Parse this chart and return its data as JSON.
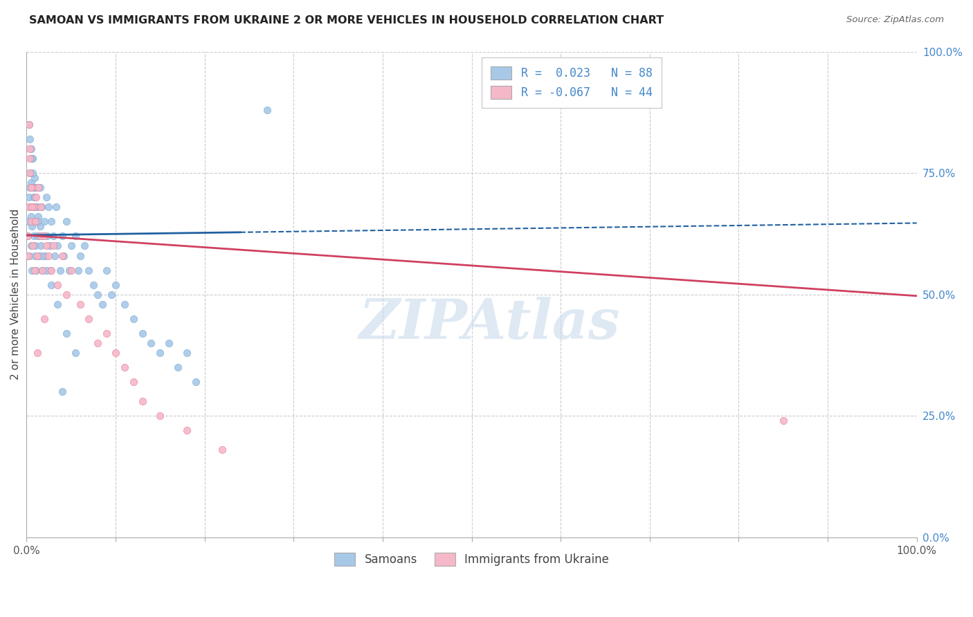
{
  "title": "SAMOAN VS IMMIGRANTS FROM UKRAINE 2 OR MORE VEHICLES IN HOUSEHOLD CORRELATION CHART",
  "source": "Source: ZipAtlas.com",
  "ylabel": "2 or more Vehicles in Household",
  "samoan_color": "#a8c8e8",
  "samoan_edge_color": "#7bafd4",
  "ukraine_color": "#f5b8c8",
  "ukraine_edge_color": "#e8809a",
  "samoan_line_color": "#2060a0",
  "ukraine_line_color": "#d04060",
  "samoan_R": 0.023,
  "samoan_N": 88,
  "ukraine_R": -0.067,
  "ukraine_N": 44,
  "legend_label_1": "Samoans",
  "legend_label_2": "Immigrants from Ukraine",
  "watermark": "ZIPAtlas",
  "right_tick_color": "#4488cc",
  "samoan_points_x": [
    0.001,
    0.002,
    0.003,
    0.003,
    0.004,
    0.004,
    0.004,
    0.005,
    0.005,
    0.005,
    0.006,
    0.006,
    0.007,
    0.007,
    0.008,
    0.008,
    0.009,
    0.009,
    0.01,
    0.01,
    0.011,
    0.011,
    0.012,
    0.012,
    0.013,
    0.014,
    0.015,
    0.015,
    0.016,
    0.017,
    0.018,
    0.019,
    0.02,
    0.021,
    0.022,
    0.023,
    0.025,
    0.026,
    0.027,
    0.028,
    0.03,
    0.032,
    0.033,
    0.035,
    0.038,
    0.04,
    0.042,
    0.045,
    0.048,
    0.05,
    0.055,
    0.058,
    0.06,
    0.065,
    0.07,
    0.075,
    0.08,
    0.085,
    0.09,
    0.095,
    0.1,
    0.11,
    0.12,
    0.13,
    0.14,
    0.15,
    0.16,
    0.17,
    0.18,
    0.19,
    0.003,
    0.004,
    0.005,
    0.006,
    0.007,
    0.008,
    0.009,
    0.01,
    0.012,
    0.015,
    0.018,
    0.022,
    0.028,
    0.035,
    0.045,
    0.055,
    0.27,
    0.04
  ],
  "samoan_points_y": [
    0.62,
    0.65,
    0.7,
    0.58,
    0.72,
    0.68,
    0.75,
    0.6,
    0.66,
    0.73,
    0.55,
    0.64,
    0.68,
    0.78,
    0.62,
    0.7,
    0.58,
    0.74,
    0.6,
    0.65,
    0.72,
    0.55,
    0.68,
    0.62,
    0.66,
    0.58,
    0.72,
    0.64,
    0.6,
    0.68,
    0.55,
    0.62,
    0.65,
    0.58,
    0.7,
    0.62,
    0.68,
    0.6,
    0.55,
    0.65,
    0.62,
    0.58,
    0.68,
    0.6,
    0.55,
    0.62,
    0.58,
    0.65,
    0.55,
    0.6,
    0.62,
    0.55,
    0.58,
    0.6,
    0.55,
    0.52,
    0.5,
    0.48,
    0.55,
    0.5,
    0.52,
    0.48,
    0.45,
    0.42,
    0.4,
    0.38,
    0.4,
    0.35,
    0.38,
    0.32,
    0.85,
    0.82,
    0.8,
    0.78,
    0.75,
    0.72,
    0.7,
    0.68,
    0.65,
    0.62,
    0.58,
    0.55,
    0.52,
    0.48,
    0.42,
    0.38,
    0.88,
    0.3
  ],
  "ukraine_points_x": [
    0.001,
    0.002,
    0.003,
    0.004,
    0.004,
    0.005,
    0.006,
    0.007,
    0.008,
    0.009,
    0.01,
    0.011,
    0.012,
    0.013,
    0.015,
    0.016,
    0.018,
    0.02,
    0.022,
    0.025,
    0.028,
    0.03,
    0.035,
    0.04,
    0.045,
    0.05,
    0.06,
    0.07,
    0.08,
    0.09,
    0.1,
    0.11,
    0.12,
    0.13,
    0.15,
    0.18,
    0.22,
    0.85,
    0.003,
    0.004,
    0.005,
    0.006,
    0.012,
    0.02
  ],
  "ukraine_points_y": [
    0.62,
    0.58,
    0.68,
    0.75,
    0.8,
    0.65,
    0.72,
    0.6,
    0.68,
    0.55,
    0.65,
    0.7,
    0.58,
    0.72,
    0.62,
    0.68,
    0.55,
    0.62,
    0.6,
    0.58,
    0.55,
    0.6,
    0.52,
    0.58,
    0.5,
    0.55,
    0.48,
    0.45,
    0.4,
    0.42,
    0.38,
    0.35,
    0.32,
    0.28,
    0.25,
    0.22,
    0.18,
    0.24,
    0.85,
    0.78,
    0.72,
    0.68,
    0.38,
    0.45
  ]
}
